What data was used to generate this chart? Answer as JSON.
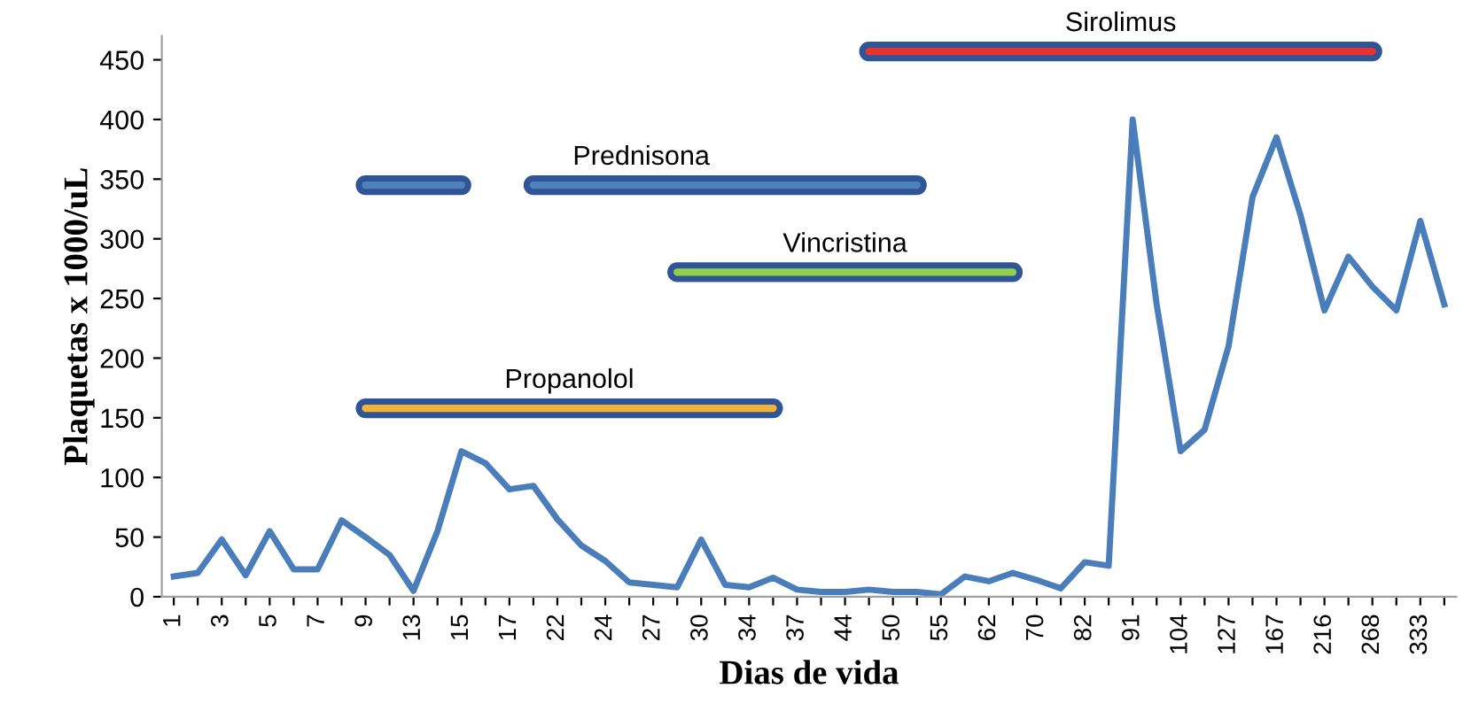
{
  "chart_data": {
    "type": "line",
    "xlabel": "Dias de vida",
    "ylabel": "Plaquetas x 1000/uL",
    "categories": [
      "1",
      null,
      "3",
      null,
      "5",
      null,
      "7",
      null,
      "9",
      null,
      "13",
      null,
      "15",
      null,
      "17",
      null,
      "22",
      null,
      "24",
      null,
      "27",
      null,
      "30",
      null,
      "34",
      null,
      "37",
      null,
      "44",
      null,
      "50",
      null,
      "55",
      null,
      "62",
      null,
      "70",
      null,
      "82",
      null,
      "91",
      null,
      "104",
      null,
      "127",
      null,
      "167",
      null,
      "216",
      null,
      "268",
      null,
      "333",
      null
    ],
    "series": [
      {
        "color": "#4a7ebb",
        "values": [
          17,
          20,
          48,
          18,
          55,
          23,
          23,
          64,
          50,
          35,
          5,
          55,
          122,
          112,
          90,
          93,
          65,
          43,
          30,
          12,
          10,
          8,
          48,
          10,
          8,
          16,
          6,
          4,
          4,
          6,
          4,
          4,
          2,
          17,
          13,
          20,
          14,
          7,
          29,
          26,
          400,
          245,
          122,
          140,
          210,
          335,
          385,
          320,
          240,
          285,
          260,
          240,
          315,
          245
        ]
      },
      {
        "name": "Propanolol",
        "color": "#f5b335",
        "values": [
          null,
          null,
          null,
          null,
          null,
          null,
          null,
          null,
          158,
          158,
          158,
          158,
          158,
          158,
          158,
          158,
          158,
          158,
          158,
          158,
          158,
          158,
          158,
          158,
          158,
          158,
          null,
          null,
          null,
          null,
          null,
          null,
          null,
          null,
          null,
          null,
          null,
          null,
          null,
          null,
          null,
          null,
          null,
          null,
          null,
          null,
          null,
          null,
          null,
          null,
          null,
          null,
          null,
          null
        ]
      },
      {
        "name": "Prednisona",
        "color": "#4f81bd",
        "values": [
          null,
          null,
          null,
          null,
          null,
          null,
          null,
          null,
          345,
          345,
          345,
          345,
          345,
          null,
          null,
          345,
          345,
          345,
          345,
          345,
          345,
          345,
          345,
          345,
          345,
          345,
          345,
          345,
          345,
          345,
          345,
          345,
          null,
          null,
          null,
          null,
          null,
          null,
          null,
          null,
          null,
          null,
          null,
          null,
          null,
          null,
          null,
          null,
          null,
          null,
          null,
          null,
          null,
          null
        ]
      },
      {
        "name": "Vincristina",
        "color": "#8fd14f",
        "values": [
          null,
          null,
          null,
          null,
          null,
          null,
          null,
          null,
          null,
          null,
          null,
          null,
          null,
          null,
          null,
          null,
          null,
          null,
          null,
          null,
          null,
          272,
          272,
          272,
          272,
          272,
          272,
          272,
          272,
          272,
          272,
          272,
          272,
          272,
          272,
          272,
          null,
          null,
          null,
          null,
          null,
          null,
          null,
          null,
          null,
          null,
          null,
          null,
          null,
          null,
          null,
          null,
          null,
          null
        ]
      },
      {
        "name": "Sirolimus",
        "color": "#e8322e",
        "values": [
          null,
          null,
          null,
          null,
          null,
          null,
          null,
          null,
          null,
          null,
          null,
          null,
          null,
          null,
          null,
          null,
          null,
          null,
          null,
          null,
          null,
          null,
          null,
          null,
          null,
          null,
          null,
          null,
          null,
          457,
          457,
          457,
          457,
          457,
          457,
          457,
          457,
          457,
          457,
          457,
          457,
          457,
          457,
          457,
          457,
          457,
          457,
          457,
          457,
          457,
          457,
          null,
          null,
          null
        ]
      }
    ],
    "ylim": [
      0,
      470
    ],
    "yticks": [
      0,
      50,
      100,
      150,
      200,
      250,
      300,
      350,
      400,
      450
    ],
    "grid": false,
    "legend": false,
    "marker": "none",
    "line_style": "solid"
  }
}
